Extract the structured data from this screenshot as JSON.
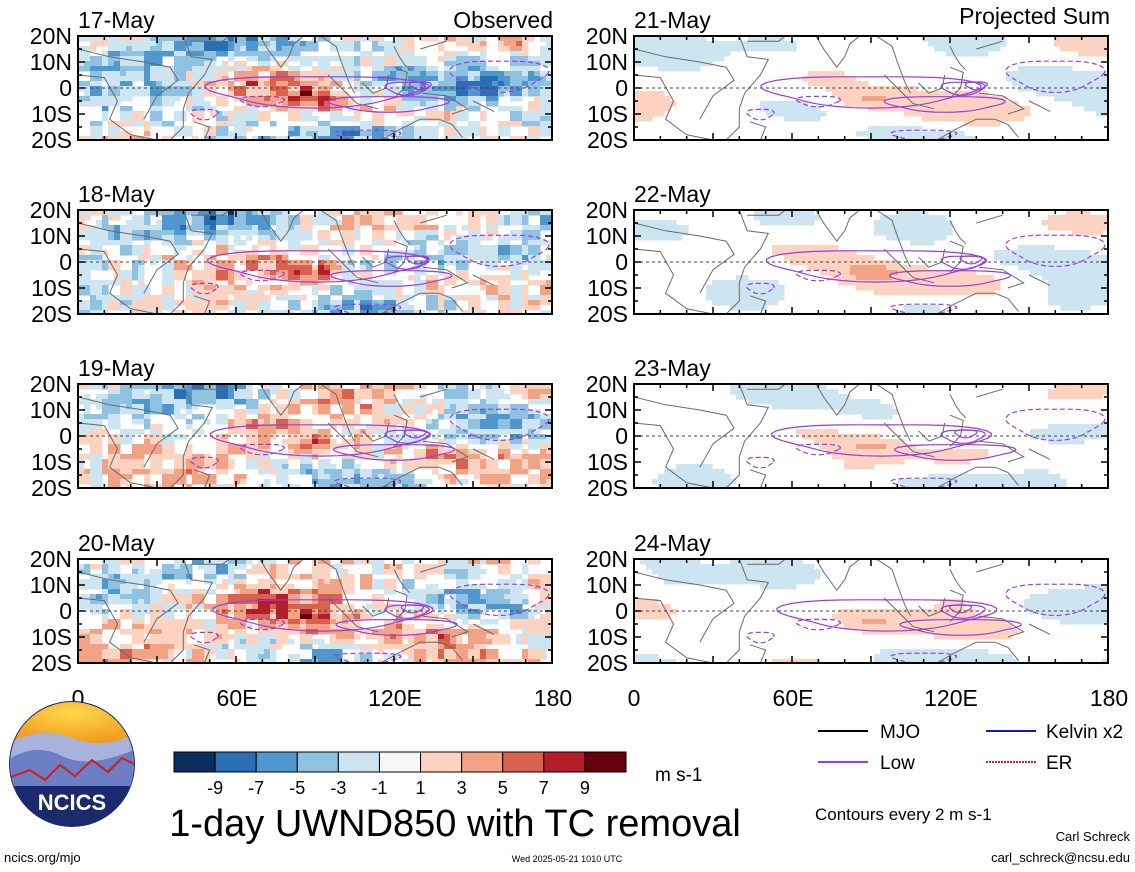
{
  "chart_data": {
    "type": "heatmap",
    "title": "1-day UWND850 with TC removal",
    "units": "m s-1",
    "colorbar": {
      "tick_labels": [
        "-9",
        "-7",
        "-5",
        "-3",
        "-1",
        "1",
        "3",
        "5",
        "7",
        "9"
      ],
      "colors": [
        "#0a2f5e",
        "#2a6eb4",
        "#4f97cc",
        "#8ec2e0",
        "#cde4f1",
        "#f7f7f7",
        "#fbd3c0",
        "#f2a285",
        "#d9624f",
        "#b31e2a",
        "#67000d"
      ]
    },
    "columns": [
      {
        "heading": "Observed",
        "panels": [
          "17-May",
          "18-May",
          "19-May",
          "20-May"
        ]
      },
      {
        "heading": "Projected Sum",
        "panels": [
          "21-May",
          "22-May",
          "23-May",
          "24-May"
        ]
      }
    ],
    "y_ticks": [
      "20N",
      "10N",
      "0",
      "10S",
      "20S"
    ],
    "x_ticks": [
      "0",
      "60E",
      "120E",
      "180"
    ],
    "x_range": [
      0,
      180
    ],
    "y_range": [
      -20,
      20
    ],
    "legend": {
      "entries": [
        {
          "name": "MJO",
          "color": "#000000"
        },
        {
          "name": "Kelvin x2",
          "color": "#1010e0"
        },
        {
          "name": "Low",
          "color": "#9a3de0"
        },
        {
          "name": "ER",
          "color": "#e02020"
        }
      ],
      "placement": "bottom-right"
    },
    "contour_note": "Contours every 2 m s-1"
  },
  "branding": {
    "logo_text": "NCICS",
    "site": "ncics.org/mjo",
    "timestamp": "Wed 2025-05-21 1010 UTC",
    "author": "Carl Schreck",
    "email": "carl_schreck@ncsu.edu"
  },
  "palette": {
    "purple": "#9a3de0",
    "coast": "#6a6a6a"
  }
}
